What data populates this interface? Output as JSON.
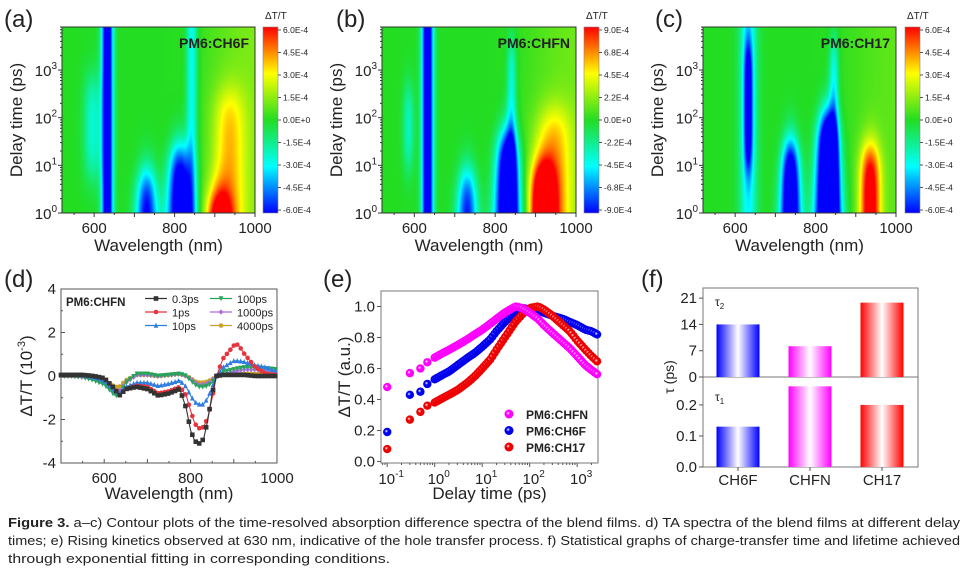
{
  "caption": {
    "label": "Figure 3.",
    "line1": "a–c) Contour plots of the time-resolved absorption difference spectra of the blend films. d) TA spectra of the blend films at different delay",
    "line2": "times; e) Rising kinetics observed at 630 nm, indicative of the hole transfer process. f) Statistical graphs of charge-transfer time and lifetime achieved",
    "line3": "through exponential fitting in corresponding conditions."
  },
  "chart_data": [
    {
      "panel": "(a)",
      "type": "heatmap",
      "sample": "PM6:CH6F",
      "xlabel": "Wavelength (nm)",
      "ylabel": "Delay time (ps)",
      "xlim": [
        520,
        1000
      ],
      "x_ticks": [
        600,
        800,
        1000
      ],
      "ylim": [
        1,
        8000
      ],
      "yscale": "log",
      "y_ticks": [
        1,
        10,
        100,
        1000
      ],
      "y_tick_exponents": [
        "0",
        "1",
        "2",
        "3"
      ],
      "colorbar": {
        "label": "ΔT/T",
        "zlim": [
          -0.0006,
          0.0006
        ],
        "ticks": [
          "6.0E-4",
          "4.5E-4",
          "3.0E-4",
          "1.5E-4",
          "0.0E+0",
          "-1.5E-4",
          "-3.0E-4",
          "-4.5E-4",
          "-6.0E-4"
        ],
        "colormap": [
          "#0000ff",
          "#00ffff",
          "#22dd22",
          "#ffff00",
          "#ff0000"
        ]
      },
      "features_1e-4": [
        {
          "center_nm": 632,
          "width_nm": 14,
          "amplitude": -8,
          "fade_log_ps": 5
        },
        {
          "center_nm": 595,
          "width_nm": 22,
          "amplitude": -2.5,
          "rise_log_ps": 0.8,
          "fade_log_ps": 2.8
        },
        {
          "center_nm": 730,
          "width_nm": 28,
          "amplitude": -6.5,
          "fade_log_ps": 0.8,
          "narrowing": 0.5
        },
        {
          "center_nm": 812,
          "width_nm": 32,
          "amplitude": -8,
          "fade_log_ps": 1.3,
          "narrowing": 0.5
        },
        {
          "center_nm": 842,
          "width_nm": 14,
          "amplitude": -3,
          "fade_log_ps": 5
        },
        {
          "center_nm": 910,
          "width_nm": 30,
          "amplitude": 8,
          "fade_log_ps": 0.3
        },
        {
          "center_nm": 935,
          "width_nm": 40,
          "amplitude": 3,
          "fade_log_ps": 2.5
        },
        {
          "center_nm": 1000,
          "width_nm": 120,
          "amplitude": 1.2,
          "fade_log_ps": 5
        }
      ]
    },
    {
      "panel": "(b)",
      "type": "heatmap",
      "sample": "PM6:CHFN",
      "xlabel": "Wavelength (nm)",
      "ylabel": "Delay time (ps)",
      "xlim": [
        520,
        1000
      ],
      "x_ticks": [
        600,
        800,
        1000
      ],
      "ylim": [
        1,
        8000
      ],
      "yscale": "log",
      "y_ticks": [
        1,
        10,
        100,
        1000
      ],
      "y_tick_exponents": [
        "0",
        "1",
        "2",
        "3"
      ],
      "colorbar": {
        "label": "ΔT/T",
        "zlim": [
          -0.0009,
          0.0009
        ],
        "ticks": [
          "9.0E-4",
          "6.8E-4",
          "4.5E-4",
          "2.2E-4",
          "0.0E+0",
          "-2.2E-4",
          "-4.5E-4",
          "-6.8E-4",
          "-9.0E-4"
        ],
        "colormap": [
          "#0000ff",
          "#00ffff",
          "#22dd22",
          "#ffff00",
          "#ff0000"
        ]
      },
      "features_1e-4": [
        {
          "center_nm": 632,
          "width_nm": 14,
          "amplitude": -12,
          "fade_log_ps": 5
        },
        {
          "center_nm": 585,
          "width_nm": 14,
          "amplitude": -3.5,
          "rise_log_ps": 1.0,
          "fade_log_ps": 2.6
        },
        {
          "center_nm": 730,
          "width_nm": 26,
          "amplitude": -9,
          "fade_log_ps": 0.8,
          "narrowing": 0.5
        },
        {
          "center_nm": 830,
          "width_nm": 32,
          "amplitude": -14,
          "fade_log_ps": 1.6,
          "narrowing": 0.5
        },
        {
          "center_nm": 840,
          "width_nm": 12,
          "amplitude": -4,
          "fade_log_ps": 3.6
        },
        {
          "center_nm": 918,
          "width_nm": 30,
          "amplitude": 14,
          "fade_log_ps": 0.9
        },
        {
          "center_nm": 945,
          "width_nm": 45,
          "amplitude": 5,
          "fade_log_ps": 2.1
        },
        {
          "center_nm": 1000,
          "width_nm": 120,
          "amplitude": 1.5,
          "fade_log_ps": 5
        }
      ]
    },
    {
      "panel": "(c)",
      "type": "heatmap",
      "sample": "PM6:CH17",
      "xlabel": "Wavelength (nm)",
      "ylabel": "Delay time (ps)",
      "xlim": [
        520,
        1000
      ],
      "x_ticks": [
        600,
        800,
        1000
      ],
      "ylim": [
        1,
        8000
      ],
      "yscale": "log",
      "y_ticks": [
        1,
        10,
        100,
        1000
      ],
      "y_tick_exponents": [
        "0",
        "1",
        "2",
        "3"
      ],
      "colorbar": {
        "label": "ΔT/T",
        "zlim": [
          -0.0006,
          0.0006
        ],
        "ticks": [
          "6.0E-4",
          "4.5E-4",
          "3.0E-4",
          "1.5E-4",
          "0.0E+0",
          "-1.5E-4",
          "-3.0E-4",
          "-4.5E-4",
          "-6.0E-4"
        ],
        "colormap": [
          "#0000ff",
          "#00ffff",
          "#22dd22",
          "#ffff00",
          "#ff0000"
        ]
      },
      "features_1e-4": [
        {
          "center_nm": 632,
          "width_nm": 11,
          "amplitude": -5,
          "rise_log_ps": 1.0,
          "fade_log_ps": 3.5
        },
        {
          "center_nm": 632,
          "width_nm": 22,
          "amplitude": -3,
          "fade_log_ps": 5
        },
        {
          "center_nm": 737,
          "width_nm": 26,
          "amplitude": -9,
          "fade_log_ps": 1.4,
          "narrowing": 0.5
        },
        {
          "center_nm": 830,
          "width_nm": 32,
          "amplitude": -11,
          "fade_log_ps": 2.0,
          "narrowing": 0.5
        },
        {
          "center_nm": 845,
          "width_nm": 12,
          "amplitude": -3,
          "fade_log_ps": 3.6
        },
        {
          "center_nm": 935,
          "width_nm": 25,
          "amplitude": 7,
          "fade_log_ps": 1.3
        },
        {
          "center_nm": 1000,
          "width_nm": 120,
          "amplitude": 0.8,
          "fade_log_ps": 5
        }
      ]
    },
    {
      "panel": "(d)",
      "type": "line",
      "sample": "PM6:CHFN",
      "xlabel": "Wavelength (nm)",
      "ylabel": "ΔT/T (10",
      "ylabel_exp": "-3",
      "ylabel_end": ")",
      "xlim": [
        500,
        1000
      ],
      "x_ticks": [
        600,
        800,
        1000
      ],
      "ylim": [
        -4,
        4
      ],
      "y_ticks": [
        -4,
        -2,
        0,
        2,
        4
      ],
      "legend": "top-right",
      "x": [
        500,
        525,
        550,
        575,
        600,
        625,
        635,
        650,
        675,
        700,
        725,
        750,
        775,
        790,
        800,
        810,
        820,
        830,
        840,
        850,
        860,
        875,
        900,
        910,
        925,
        950,
        975,
        1000
      ],
      "series": [
        {
          "name": "0.3ps",
          "color": "#333333",
          "marker": "square",
          "values": [
            0.05,
            0.05,
            0.05,
            0,
            -0.1,
            -0.6,
            -0.9,
            -0.6,
            -0.5,
            -0.6,
            -0.9,
            -0.8,
            -0.6,
            -1.5,
            -2.5,
            -3.0,
            -3.1,
            -2.9,
            -2.0,
            -0.8,
            0,
            0.05,
            0.05,
            0.05,
            0.05,
            0,
            0,
            0
          ]
        },
        {
          "name": "1ps",
          "color": "#e8323c",
          "marker": "circle",
          "values": [
            0.05,
            0.05,
            0.05,
            0,
            -0.1,
            -0.6,
            -0.9,
            -0.6,
            -0.45,
            -0.5,
            -0.8,
            -0.7,
            -0.5,
            -0.9,
            -1.6,
            -2.2,
            -2.4,
            -2.35,
            -1.9,
            -1.0,
            0,
            0.8,
            1.4,
            1.45,
            1.0,
            0.4,
            0.1,
            0.05
          ]
        },
        {
          "name": "10ps",
          "color": "#2f7de1",
          "marker": "triangle-up",
          "values": [
            0.05,
            0.05,
            0.05,
            -0.05,
            -0.2,
            -0.7,
            -0.8,
            -0.5,
            -0.3,
            -0.3,
            -0.45,
            -0.35,
            -0.2,
            -0.5,
            -0.9,
            -1.2,
            -1.3,
            -1.3,
            -1.0,
            -0.5,
            0,
            0.4,
            0.7,
            0.7,
            0.65,
            0.5,
            0.4,
            0.2
          ]
        },
        {
          "name": "100ps",
          "color": "#27a35a",
          "marker": "triangle-down",
          "values": [
            0,
            0,
            -0.05,
            -0.2,
            -0.4,
            -0.9,
            -0.9,
            -0.3,
            0.1,
            0.1,
            0.0,
            0.05,
            0.1,
            0,
            -0.2,
            -0.4,
            -0.5,
            -0.5,
            -0.45,
            -0.3,
            0,
            0.2,
            0.3,
            0.35,
            0.4,
            0.4,
            0.35,
            0.3
          ]
        },
        {
          "name": "1000ps",
          "color": "#a76ee0",
          "marker": "diamond",
          "values": [
            0,
            0,
            -0.05,
            -0.15,
            -0.3,
            -0.7,
            -0.7,
            -0.3,
            0.05,
            0.05,
            0,
            0.05,
            0.1,
            0,
            -0.15,
            -0.3,
            -0.4,
            -0.4,
            -0.35,
            -0.2,
            0,
            0.1,
            0.2,
            0.25,
            0.3,
            0.3,
            0.25,
            0.2
          ]
        },
        {
          "name": "4000ps",
          "color": "#c9a227",
          "marker": "star",
          "values": [
            0,
            0,
            0,
            -0.1,
            -0.2,
            -0.5,
            -0.5,
            -0.2,
            0.05,
            0.05,
            0,
            0.05,
            0.1,
            0,
            -0.1,
            -0.25,
            -0.3,
            -0.3,
            -0.25,
            -0.15,
            0,
            0.05,
            0.1,
            0.1,
            0.1,
            0.1,
            0.1,
            0.1
          ]
        }
      ]
    },
    {
      "panel": "(e)",
      "type": "scatter",
      "xlabel": "Delay time (ps)",
      "ylabel": "ΔT/T (a.u.)",
      "xscale": "log",
      "xlim": [
        0.074,
        2750
      ],
      "x_ticks": [
        0.1,
        1,
        10,
        100,
        1000
      ],
      "x_tick_exponents": [
        "-1",
        "0",
        "1",
        "2",
        "3"
      ],
      "ylim": [
        -0.01,
        1.1
      ],
      "y_ticks": [
        "0.0",
        "0.2",
        "0.4",
        "0.6",
        "0.8",
        "1.0"
      ],
      "legend": "bottom-right",
      "x": [
        0.1,
        0.3,
        0.5,
        0.7,
        1,
        1.5,
        2,
        3,
        5,
        7,
        10,
        15,
        20,
        30,
        50,
        70,
        100,
        150,
        200,
        300,
        500,
        700,
        1000,
        1500,
        2000,
        3000
      ],
      "series": [
        {
          "name": "PM6:CHFN",
          "color": "#ff00ff",
          "values": [
            0.48,
            0.57,
            0.6,
            0.64,
            0.67,
            0.7,
            0.72,
            0.75,
            0.79,
            0.82,
            0.85,
            0.89,
            0.92,
            0.96,
            1.0,
            0.99,
            0.96,
            0.92,
            0.88,
            0.83,
            0.77,
            0.73,
            0.68,
            0.62,
            0.59,
            0.55
          ]
        },
        {
          "name": "PM6:CH6F",
          "color": "#0000ee",
          "values": [
            0.19,
            0.43,
            0.45,
            0.5,
            0.53,
            0.56,
            0.58,
            0.62,
            0.67,
            0.7,
            0.74,
            0.79,
            0.84,
            0.9,
            0.96,
            0.99,
            0.98,
            0.97,
            0.96,
            0.94,
            0.92,
            0.9,
            0.88,
            0.85,
            0.84,
            0.81
          ]
        },
        {
          "name": "PM6:CH17",
          "color": "#ee0000",
          "values": [
            0.08,
            0.27,
            0.32,
            0.36,
            0.38,
            0.41,
            0.43,
            0.46,
            0.51,
            0.55,
            0.6,
            0.66,
            0.72,
            0.8,
            0.9,
            0.95,
            0.99,
            1.0,
            0.98,
            0.94,
            0.88,
            0.84,
            0.78,
            0.72,
            0.68,
            0.63
          ]
        }
      ]
    },
    {
      "panel": "(f)",
      "type": "bar",
      "ylabel": "τ (ps)",
      "categories": [
        "CH6F",
        "CHFN",
        "CH17"
      ],
      "colors": [
        "#0000ff",
        "#ff00ff",
        "#ff0000"
      ],
      "upper": {
        "label": "τ",
        "sub": "2",
        "values": [
          14,
          8.2,
          19.8
        ],
        "ylim": [
          0,
          23.7
        ],
        "y_ticks": [
          "0",
          "7",
          "14",
          "21"
        ]
      },
      "lower": {
        "label": "τ",
        "sub": "1",
        "values": [
          0.13,
          0.26,
          0.2
        ],
        "ylim": [
          0,
          0.29
        ],
        "y_ticks": [
          "0.0",
          "0.1",
          "0.2"
        ]
      }
    }
  ]
}
